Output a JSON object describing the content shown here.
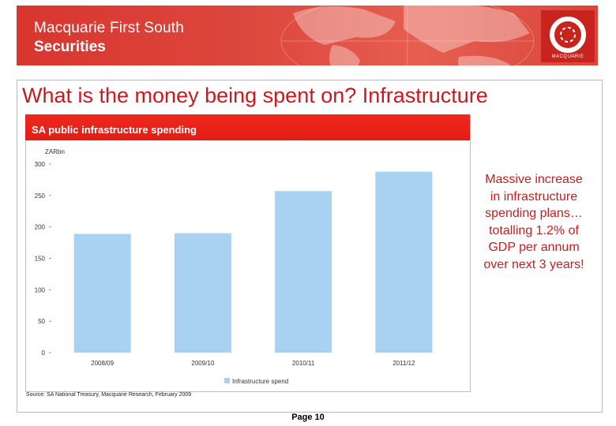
{
  "header": {
    "company_line1": "Macquarie First South",
    "company_line2": "Securities",
    "logo_text": "MACQUARIE"
  },
  "slide": {
    "title": "What is the money being spent on?  Infrastructure",
    "callout": "Massive increase in infrastructure spending plans… totalling 1.2% of GDP per annum over next 3 years!",
    "source": "Source: SA National Treasury, Macquarie Research, February 2009",
    "page": "Page 10"
  },
  "colors": {
    "accent": "#e11d15",
    "bar": "#a9d1f2",
    "title_red": "#c9191e"
  },
  "chart_data": {
    "type": "bar",
    "title": "SA public infrastructure spending",
    "ylabel": "ZARbn",
    "xlabel": "",
    "categories": [
      "2008/09",
      "2009/10",
      "2010/11",
      "2011/12"
    ],
    "series": [
      {
        "name": "Infrastructure spend",
        "values": [
          189,
          190,
          257,
          288
        ]
      }
    ],
    "ylim": [
      0,
      300
    ],
    "yticks": [
      "0",
      "50",
      "100",
      "150",
      "200",
      "250",
      "300"
    ],
    "legend": "bottom",
    "grid": false
  }
}
